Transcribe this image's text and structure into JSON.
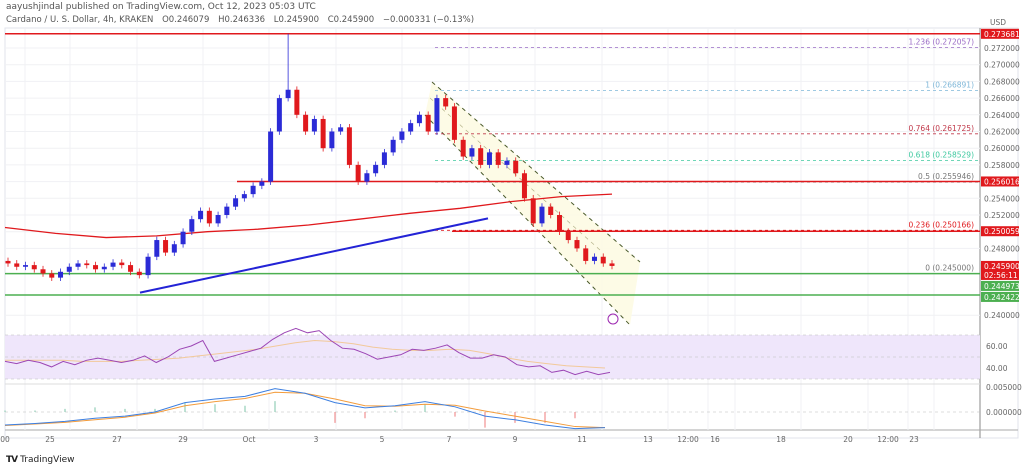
{
  "header": {
    "published": "aayushjindal published on TradingView.com, Oct 12, 2023 05:03 UTC",
    "symbol": "Cardano / U. S. Dollar, 4h, KRAKEN",
    "open": "O0.246079",
    "high": "H0.246336",
    "low": "L0.245900",
    "close": "C0.245900",
    "change": "−0.000331 (−0.13%)"
  },
  "colors": {
    "up": "#2b2bd6",
    "down": "#e0191d",
    "ma": "#e0191d",
    "trend": "#2323d6",
    "support": "#4caf50",
    "rsi": "#9c46b5",
    "rsi_band": "#efe6fb",
    "macd": "#3d7fe0",
    "signal": "#f39c3c"
  },
  "price_axis": {
    "currency": "USD",
    "ticks": [
      "0.272000",
      "0.270000",
      "0.268000",
      "0.266000",
      "0.264000",
      "0.262000",
      "0.260000",
      "0.258000",
      "0.256000",
      "0.254000",
      "0.252000",
      "0.250000",
      "0.248000",
      "0.240000"
    ],
    "tick_values": [
      0.272,
      0.27,
      0.268,
      0.266,
      0.264,
      0.262,
      0.26,
      0.258,
      0.256,
      0.254,
      0.252,
      0.25,
      0.248,
      0.24
    ],
    "tags": [
      {
        "label": "0.273681",
        "value": 0.2737,
        "color": "#e0191d"
      },
      {
        "label": "0.256016",
        "value": 0.256016,
        "color": "#e0191d"
      },
      {
        "label": "0.250059",
        "value": 0.250059,
        "color": "#e0191d"
      },
      {
        "label": "0.245900",
        "value": 0.2459,
        "color": "#e0191d",
        "sub": "02:56:11"
      },
      {
        "label": "0.244973",
        "value": 0.244973,
        "color": "#4caf50"
      },
      {
        "label": "0.242422",
        "value": 0.242422,
        "color": "#4caf50"
      }
    ]
  },
  "horizontal_lines": [
    {
      "value": 0.2737,
      "color": "#e0191d"
    },
    {
      "value": 0.256016,
      "color": "#e0191d"
    },
    {
      "value": 0.250059,
      "color": "#e0191d"
    },
    {
      "value": 0.244973,
      "color": "#4caf50"
    },
    {
      "value": 0.242422,
      "color": "#4caf50"
    }
  ],
  "fib_levels": [
    {
      "label": "1.236 (0.272057)",
      "value": 0.272057,
      "color": "#9b6dc6"
    },
    {
      "label": "1 (0.266891)",
      "value": 0.266891,
      "color": "#7fb7d8"
    },
    {
      "label": "0.764 (0.261725)",
      "value": 0.261725,
      "color": "#c0394a"
    },
    {
      "label": "0.618 (0.258529)",
      "value": 0.258529,
      "color": "#40c9a0"
    },
    {
      "label": "0.5 (0.255946)",
      "value": 0.255946,
      "color": "#777777"
    },
    {
      "label": "0.236 (0.250166)",
      "value": 0.250166,
      "color": "#e0191d"
    },
    {
      "label": "0 (0.245000)",
      "value": 0.245,
      "color": "#777777"
    }
  ],
  "time_axis": [
    "00",
    "25",
    "27",
    "29",
    "Oct",
    "3",
    "5",
    "7",
    "9",
    "11",
    "13",
    "12:00",
    "16",
    "18",
    "20",
    "12:00",
    "23"
  ],
  "rsi_axis": [
    "60.00",
    "40.00"
  ],
  "macd_axis": [
    "0.005000",
    "0.000000"
  ],
  "chart_data": {
    "type": "candlestick",
    "closes": [
      0.2462,
      0.2458,
      0.246,
      0.2455,
      0.245,
      0.2445,
      0.2452,
      0.2458,
      0.2462,
      0.246,
      0.2455,
      0.2458,
      0.2463,
      0.246,
      0.2452,
      0.2448,
      0.247,
      0.249,
      0.2475,
      0.2485,
      0.25,
      0.2515,
      0.2525,
      0.251,
      0.252,
      0.253,
      0.254,
      0.2545,
      0.2555,
      0.256,
      0.262,
      0.266,
      0.267,
      0.264,
      0.262,
      0.2635,
      0.26,
      0.262,
      0.2625,
      0.258,
      0.256,
      0.257,
      0.258,
      0.2595,
      0.261,
      0.262,
      0.263,
      0.264,
      0.262,
      0.266,
      0.265,
      0.261,
      0.259,
      0.26,
      0.258,
      0.2595,
      0.258,
      0.2585,
      0.257,
      0.254,
      0.251,
      0.253,
      0.252,
      0.25,
      0.249,
      0.248,
      0.2465,
      0.247,
      0.2462,
      0.2459
    ],
    "first_open": 0.2465,
    "notable_high": 0.2737,
    "ma_200": [
      0.2505,
      0.2498,
      0.2493,
      0.2495,
      0.25,
      0.2503,
      0.2508,
      0.2515,
      0.2522,
      0.2528,
      0.2536,
      0.2542,
      0.2545
    ],
    "trendline": [
      0.2427,
      0.2516
    ],
    "rsi": [
      46,
      44,
      47,
      45,
      41,
      46,
      43,
      47,
      49,
      47,
      45,
      47,
      51,
      45,
      50,
      57,
      60,
      65,
      46,
      49,
      52,
      55,
      58,
      66,
      72,
      76,
      72,
      74,
      65,
      58,
      57,
      53,
      48,
      50,
      52,
      57,
      56,
      58,
      61,
      54,
      49,
      49,
      52,
      50,
      43,
      41,
      42,
      36,
      38,
      34,
      37,
      34,
      36
    ],
    "rsi_signal": [
      47,
      47,
      47,
      47,
      46,
      46,
      46,
      47,
      48,
      49,
      51,
      53,
      55,
      57,
      60,
      63,
      65,
      64,
      62,
      59,
      57,
      56,
      56,
      57,
      56,
      53,
      49,
      46,
      44,
      42,
      41,
      40
    ],
    "macd": [
      -0.0025,
      -0.0022,
      -0.0018,
      -0.0012,
      -0.0008,
      0.0,
      0.0018,
      0.0025,
      0.003,
      0.0045,
      0.0036,
      0.0018,
      0.0008,
      0.0012,
      0.002,
      0.001,
      -0.0008,
      -0.0015,
      -0.0025,
      -0.0032,
      -0.003
    ],
    "macd_signal": [
      -0.0026,
      -0.0023,
      -0.002,
      -0.0015,
      -0.001,
      -0.0002,
      0.0012,
      0.002,
      0.0026,
      0.0038,
      0.0036,
      0.0025,
      0.0012,
      0.0011,
      0.0015,
      0.0013,
      0.0002,
      -0.0008,
      -0.0018,
      -0.0028,
      -0.003
    ]
  },
  "footer": {
    "brand": "TradingView"
  }
}
